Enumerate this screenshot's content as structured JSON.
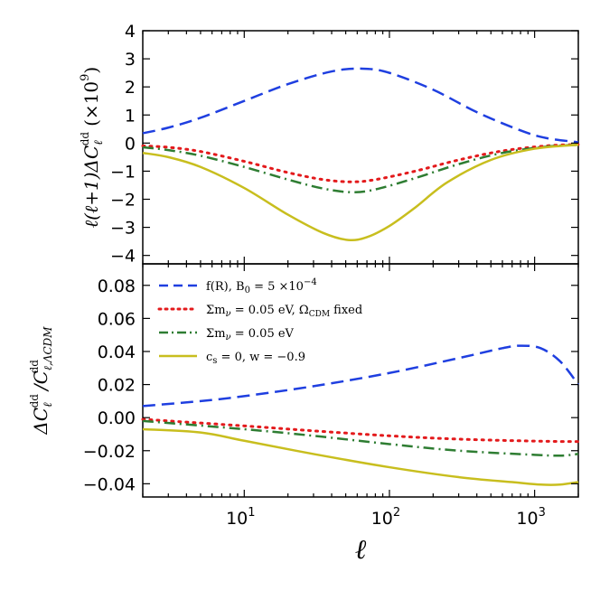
{
  "chart_data": [
    {
      "type": "line",
      "panel": "top",
      "xscale": "log",
      "xlim": [
        2,
        2000
      ],
      "ylim": [
        -4.3,
        4.0
      ],
      "ylabel": "ℓ(ℓ+1)ΔC_ℓ^dd (×10^9)",
      "ylabel_main": "ℓ(ℓ+1)ΔC",
      "ylabel_sub": "ℓ",
      "ylabel_sup": "dd",
      "ylabel_unit": "(×10",
      "ylabel_unit_exp": "9",
      "ylabel_unit_close": ")",
      "yticks": [
        4,
        3,
        2,
        1,
        0,
        -1,
        -2,
        -3,
        -4
      ],
      "ytick_labels": [
        "4",
        "3",
        "2",
        "1",
        "0",
        "−1",
        "−2",
        "−3",
        "−4"
      ],
      "series": [
        {
          "name": "f(R), B0 = 5×10^-4",
          "color": "#1f3fe0",
          "style": "dashed",
          "x": [
            2,
            3,
            5,
            10,
            20,
            40,
            65,
            100,
            200,
            400,
            800,
            1200,
            2000
          ],
          "y": [
            0.35,
            0.55,
            0.9,
            1.5,
            2.1,
            2.55,
            2.65,
            2.5,
            1.9,
            1.1,
            0.45,
            0.18,
            0.03
          ]
        },
        {
          "name": "Σmν=0.05 eV, ΩCDM fixed",
          "color": "#e31a1c",
          "style": "dotted",
          "x": [
            2,
            3,
            5,
            10,
            20,
            35,
            55,
            80,
            150,
            300,
            600,
            1200,
            2000
          ],
          "y": [
            -0.1,
            -0.15,
            -0.3,
            -0.65,
            -1.05,
            -1.3,
            -1.38,
            -1.3,
            -1.0,
            -0.6,
            -0.28,
            -0.1,
            -0.05
          ]
        },
        {
          "name": "Σmν=0.05 eV",
          "color": "#2e7d32",
          "style": "dashdot",
          "x": [
            2,
            3,
            5,
            10,
            20,
            35,
            55,
            80,
            150,
            300,
            600,
            1200,
            2000
          ],
          "y": [
            -0.15,
            -0.25,
            -0.45,
            -0.85,
            -1.3,
            -1.62,
            -1.75,
            -1.65,
            -1.25,
            -0.75,
            -0.35,
            -0.13,
            -0.06
          ]
        },
        {
          "name": "cs=0, w=−0.9",
          "color": "#c8be1e",
          "style": "solid",
          "x": [
            2,
            3,
            5,
            10,
            20,
            35,
            52,
            70,
            100,
            150,
            250,
            500,
            1000,
            2000
          ],
          "y": [
            -0.35,
            -0.5,
            -0.85,
            -1.6,
            -2.55,
            -3.2,
            -3.45,
            -3.35,
            -2.95,
            -2.3,
            -1.4,
            -0.6,
            -0.2,
            -0.06
          ]
        }
      ]
    },
    {
      "type": "line",
      "panel": "bottom",
      "xscale": "log",
      "xlim": [
        2,
        2000
      ],
      "ylim": [
        -0.048,
        0.093
      ],
      "xlabel": "ℓ",
      "ylabel": "ΔC_ℓ^dd / C_ℓ,ΛCDM^dd",
      "ylabel_num": "ΔC",
      "ylabel_num_sub": "ℓ",
      "ylabel_num_sup": "dd",
      "ylabel_den": "/C",
      "ylabel_den_sub": "ℓ,ΛCDM",
      "ylabel_den_sup": "dd",
      "yticks": [
        0.08,
        0.06,
        0.04,
        0.02,
        0.0,
        -0.02,
        -0.04
      ],
      "ytick_labels": [
        "0.08",
        "0.06",
        "0.04",
        "0.02",
        "0.00",
        "−0.02",
        "−0.04"
      ],
      "xticks": [
        10,
        100,
        1000
      ],
      "xtick_base": "10",
      "xtick_exps": [
        "1",
        "2",
        "3"
      ],
      "series": [
        {
          "name": "f(R), B0 = 5×10^-4",
          "color": "#1f3fe0",
          "style": "dashed",
          "x": [
            2,
            5,
            10,
            30,
            100,
            300,
            600,
            800,
            1100,
            1500,
            2000
          ],
          "y": [
            0.007,
            0.01,
            0.013,
            0.019,
            0.027,
            0.036,
            0.042,
            0.0435,
            0.042,
            0.034,
            0.02
          ]
        },
        {
          "name": "Σmν=0.05 eV, ΩCDM fixed",
          "color": "#e31a1c",
          "style": "dotted",
          "x": [
            2,
            10,
            30,
            100,
            300,
            1000,
            2000
          ],
          "y": [
            -0.001,
            -0.005,
            -0.008,
            -0.011,
            -0.013,
            -0.0142,
            -0.0145
          ]
        },
        {
          "name": "Σmν=0.05 eV",
          "color": "#2e7d32",
          "style": "dashdot",
          "x": [
            2,
            10,
            30,
            100,
            300,
            1000,
            1500,
            2000
          ],
          "y": [
            -0.002,
            -0.007,
            -0.011,
            -0.016,
            -0.02,
            -0.0225,
            -0.023,
            -0.022
          ]
        },
        {
          "name": "cs=0, w=−0.9",
          "color": "#c8be1e",
          "style": "solid",
          "x": [
            2,
            5,
            10,
            30,
            100,
            300,
            700,
            1100,
            1500,
            2000
          ],
          "y": [
            -0.007,
            -0.009,
            -0.014,
            -0.022,
            -0.03,
            -0.036,
            -0.039,
            -0.0405,
            -0.0405,
            -0.039
          ]
        }
      ]
    }
  ],
  "legend": {
    "position": "top-left of lower panel",
    "entries": [
      {
        "base": "f(R), B",
        "sub": "0",
        "tail": " = 5 ×10",
        "sup": "−4",
        "after": ""
      },
      {
        "base": "Σm",
        "sub": "ν",
        "tail": " = 0.05 eV, Ω",
        "sup": "",
        "after": "",
        "sub2": "CDM",
        "end": " fixed"
      },
      {
        "base": "Σm",
        "sub": "ν",
        "tail": " = 0.05 eV",
        "sup": "",
        "after": ""
      },
      {
        "base": "c",
        "sub": "s",
        "tail": " = 0, w = −0.9",
        "sup": "",
        "after": ""
      }
    ]
  },
  "colors": {
    "fr": "#1f3fe0",
    "mnu_fixed": "#e31a1c",
    "mnu": "#2e7d32",
    "cs": "#c8be1e",
    "axis": "#000000"
  }
}
